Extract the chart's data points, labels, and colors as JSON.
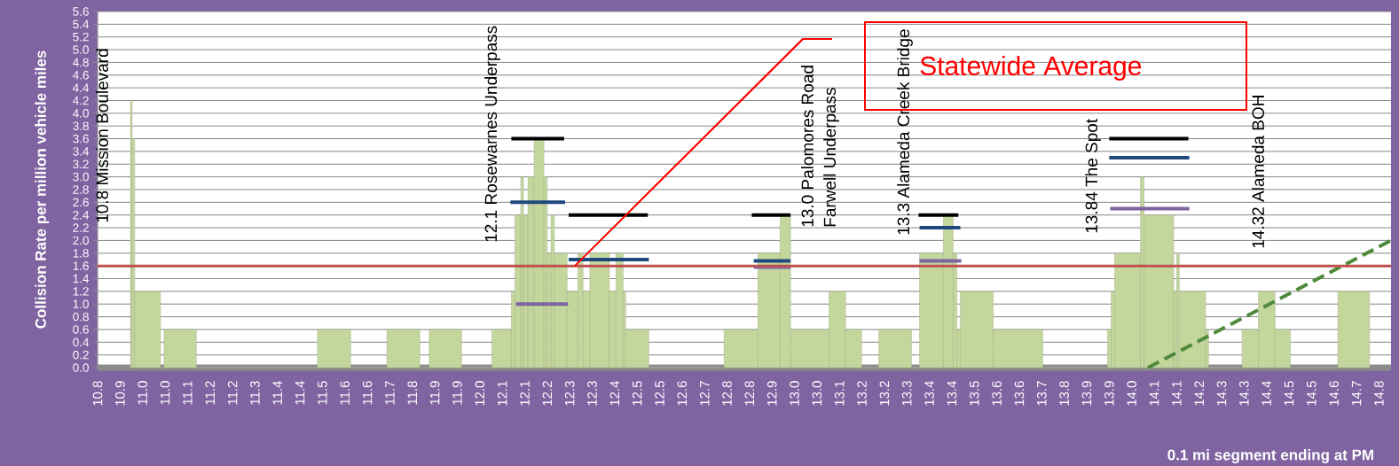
{
  "chart_data": {
    "type": "histogram",
    "xlabel": "0.1 mi segment ending at PM",
    "ylabel": "Collision Rate per million vehicle miles",
    "color": "#c3d69b",
    "bins": [
      10.921,
      10.926,
      10.934,
      11.013,
      11.024,
      11.123,
      11.495,
      11.597,
      11.708,
      11.809,
      11.838,
      11.937,
      12.03,
      12.09,
      12.101,
      12.119,
      12.127,
      12.141,
      12.16,
      12.19,
      12.2,
      12.212,
      12.222,
      12.261,
      12.294,
      12.31,
      12.331,
      12.391,
      12.411,
      12.433,
      12.441,
      12.512,
      12.743,
      12.847,
      12.915,
      12.947,
      13.065,
      13.116,
      13.165,
      13.218,
      13.318,
      13.343,
      13.416,
      13.446,
      13.457,
      13.468,
      13.569,
      13.721,
      13.92,
      13.931,
      13.942,
      14.021,
      14.032,
      14.123,
      14.132,
      14.14,
      14.221,
      14.23,
      14.333,
      14.383,
      14.434,
      14.481,
      14.627,
      14.724
    ],
    "values": [
      4.2,
      3.6,
      1.2,
      0,
      0.6,
      0,
      0.6,
      0,
      0.6,
      0,
      0.6,
      0,
      0.6,
      1.2,
      2.4,
      3.0,
      2.4,
      3.0,
      3.6,
      3.0,
      1.8,
      2.4,
      1.8,
      1.2,
      1.8,
      1.2,
      1.8,
      1.2,
      1.8,
      1.2,
      0.6,
      0,
      0.6,
      1.8,
      2.4,
      0.6,
      1.2,
      0.6,
      0,
      0.6,
      0,
      1.8,
      2.4,
      1.8,
      0.6,
      1.2,
      0.6,
      0,
      0.6,
      1.2,
      1.8,
      3.0,
      2.4,
      1.2,
      1.8,
      1.2,
      0.6,
      0,
      0.6,
      1.2,
      0.6,
      0,
      1.2
    ],
    "series": [
      {
        "type": "line",
        "color": "#000000",
        "line_style": "solid",
        "x": [
          12.09,
          12.252
        ],
        "values": [
          3.6,
          3.6
        ]
      },
      {
        "type": "line",
        "color": "#000000",
        "line_style": "solid",
        "x": [
          12.266,
          12.509
        ],
        "values": [
          2.4,
          2.4
        ]
      },
      {
        "type": "line",
        "color": "#000000",
        "line_style": "solid",
        "x": [
          12.828,
          12.947
        ],
        "values": [
          2.4,
          2.4
        ]
      },
      {
        "type": "line",
        "color": "#000000",
        "line_style": "solid",
        "x": [
          13.34,
          13.462
        ],
        "values": [
          2.4,
          2.4
        ]
      },
      {
        "type": "line",
        "color": "#000000",
        "line_style": "solid",
        "x": [
          13.925,
          14.168
        ],
        "values": [
          3.6,
          3.6
        ]
      },
      {
        "type": "line",
        "color": "#1f497d",
        "line_style": "solid",
        "x": [
          12.087,
          12.255
        ],
        "values": [
          2.6,
          2.6
        ]
      },
      {
        "type": "line",
        "color": "#1f497d",
        "line_style": "solid",
        "x": [
          12.266,
          12.512
        ],
        "values": [
          1.7,
          1.7
        ]
      },
      {
        "type": "line",
        "color": "#1f497d",
        "line_style": "solid",
        "x": [
          12.834,
          12.947
        ],
        "values": [
          1.68,
          1.68
        ]
      },
      {
        "type": "line",
        "color": "#1f497d",
        "line_style": "solid",
        "x": [
          13.343,
          13.468
        ],
        "values": [
          2.2,
          2.2
        ]
      },
      {
        "type": "line",
        "color": "#1f497d",
        "line_style": "solid",
        "x": [
          13.925,
          14.171
        ],
        "values": [
          3.3,
          3.3
        ]
      },
      {
        "type": "line",
        "color": "#8064a2",
        "line_style": "solid",
        "x": [
          12.104,
          12.264
        ],
        "values": [
          1.0,
          1.0
        ]
      },
      {
        "type": "line",
        "color": "#8064a2",
        "line_style": "solid",
        "x": [
          12.834,
          12.947
        ],
        "values": [
          1.58,
          1.58
        ]
      },
      {
        "type": "line",
        "color": "#8064a2",
        "line_style": "solid",
        "x": [
          13.343,
          13.471
        ],
        "values": [
          1.68,
          1.68
        ]
      },
      {
        "type": "line",
        "color": "#8064a2",
        "line_style": "solid",
        "x": [
          13.928,
          14.171
        ],
        "values": [
          2.5,
          2.5
        ]
      },
      {
        "type": "line",
        "color": "#4f8a3a",
        "line_style": "dashed",
        "x": [
          14.044,
          14.79
        ],
        "values": [
          0,
          2.0
        ]
      }
    ],
    "ref_lines": [
      {
        "axis": "y",
        "value": 1.6,
        "color": "#c0504d"
      }
    ],
    "annotations": [
      "10.8 Mission Boulevard",
      "12.1 Rosewarnes Underpass",
      "13.0 Palomores Road",
      "Farwell Underpass",
      "13.3 Alameda Creek Bridge",
      "13.84 The Spot",
      "14.32 Alameda BOH",
      "Statewide Average"
    ],
    "xlim": [
      10.82,
      14.79
    ],
    "ylim": [
      0,
      5.6
    ],
    "xticks": [
      {
        "value": 10.82,
        "label": "10.8"
      },
      {
        "value": 10.889,
        "label": "10.9"
      },
      {
        "value": 10.958,
        "label": "11.0"
      },
      {
        "value": 11.027,
        "label": "11.0"
      },
      {
        "value": 11.096,
        "label": "11.1"
      },
      {
        "value": 11.165,
        "label": "11.2"
      },
      {
        "value": 11.234,
        "label": "11.2"
      },
      {
        "value": 11.303,
        "label": "11.3"
      },
      {
        "value": 11.372,
        "label": "11.4"
      },
      {
        "value": 11.441,
        "label": "11.4"
      },
      {
        "value": 11.51,
        "label": "11.5"
      },
      {
        "value": 11.579,
        "label": "11.6"
      },
      {
        "value": 11.648,
        "label": "11.6"
      },
      {
        "value": 11.717,
        "label": "11.7"
      },
      {
        "value": 11.786,
        "label": "11.8"
      },
      {
        "value": 11.855,
        "label": "11.9"
      },
      {
        "value": 11.924,
        "label": "11.9"
      },
      {
        "value": 11.993,
        "label": "12.0"
      },
      {
        "value": 12.062,
        "label": "12.1"
      },
      {
        "value": 12.131,
        "label": "12.1"
      },
      {
        "value": 12.2,
        "label": "12.2"
      },
      {
        "value": 12.269,
        "label": "12.3"
      },
      {
        "value": 12.338,
        "label": "12.3"
      },
      {
        "value": 12.407,
        "label": "12.4"
      },
      {
        "value": 12.476,
        "label": "12.5"
      },
      {
        "value": 12.545,
        "label": "12.5"
      },
      {
        "value": 12.614,
        "label": "12.6"
      },
      {
        "value": 12.683,
        "label": "12.7"
      },
      {
        "value": 12.752,
        "label": "12.8"
      },
      {
        "value": 12.821,
        "label": "12.8"
      },
      {
        "value": 12.89,
        "label": "12.9"
      },
      {
        "value": 12.959,
        "label": "13.0"
      },
      {
        "value": 13.028,
        "label": "13.0"
      },
      {
        "value": 13.097,
        "label": "13.1"
      },
      {
        "value": 13.166,
        "label": "13.2"
      },
      {
        "value": 13.235,
        "label": "13.2"
      },
      {
        "value": 13.304,
        "label": "13.3"
      },
      {
        "value": 13.373,
        "label": "13.4"
      },
      {
        "value": 13.442,
        "label": "13.4"
      },
      {
        "value": 13.511,
        "label": "13.5"
      },
      {
        "value": 13.58,
        "label": "13.6"
      },
      {
        "value": 13.649,
        "label": "13.6"
      },
      {
        "value": 13.718,
        "label": "13.7"
      },
      {
        "value": 13.787,
        "label": "13.8"
      },
      {
        "value": 13.856,
        "label": "13.9"
      },
      {
        "value": 13.925,
        "label": "13.9"
      },
      {
        "value": 13.994,
        "label": "14.0"
      },
      {
        "value": 14.063,
        "label": "14.1"
      },
      {
        "value": 14.132,
        "label": "14.1"
      },
      {
        "value": 14.201,
        "label": "14.2"
      },
      {
        "value": 14.27,
        "label": "14.3"
      },
      {
        "value": 14.339,
        "label": "14.3"
      },
      {
        "value": 14.408,
        "label": "14.4"
      },
      {
        "value": 14.477,
        "label": "14.5"
      },
      {
        "value": 14.546,
        "label": "14.5"
      },
      {
        "value": 14.615,
        "label": "14.6"
      },
      {
        "value": 14.684,
        "label": "14.7"
      },
      {
        "value": 14.753,
        "label": "14.8"
      }
    ],
    "yticks": [
      {
        "value": 0,
        "label": "0.0"
      },
      0.2,
      0.4,
      0.6,
      0.8,
      {
        "value": 1,
        "label": "1.0"
      },
      1.2,
      1.4,
      1.6,
      1.8,
      {
        "value": 2,
        "label": "2.0"
      },
      2.2,
      2.4,
      2.6,
      2.8,
      {
        "value": 3,
        "label": "3.0"
      },
      3.2,
      3.4,
      3.6,
      3.8,
      {
        "value": 4,
        "label": "4.0"
      },
      4.2,
      4.4,
      4.6,
      4.8,
      {
        "value": 5,
        "label": "5.0"
      },
      5.2,
      5.4,
      5.6
    ],
    "grid": "y"
  }
}
